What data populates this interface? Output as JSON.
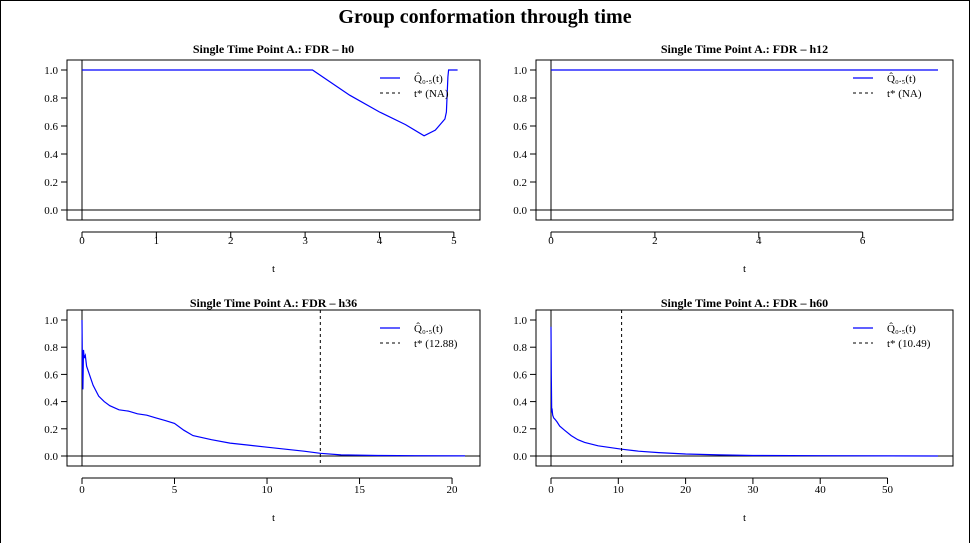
{
  "title": "Group conformation through time",
  "colors": {
    "series": "#0000ff",
    "threshold": "#000000",
    "axis": "#000000"
  },
  "chart_data": [
    {
      "type": "line",
      "title": "Single Time Point A.: FDR – h0",
      "xlabel": "t",
      "xlim": [
        0,
        5.15
      ],
      "ylim": [
        0,
        1.0
      ],
      "xticks": [
        0,
        1,
        2,
        3,
        4,
        5
      ],
      "yticks": [
        0.0,
        0.2,
        0.4,
        0.6,
        0.8,
        1.0
      ],
      "ytick_labels": [
        "0.0",
        "0.2",
        "0.4",
        "0.6",
        "0.8",
        "1.0"
      ],
      "series": [
        {
          "label": "Q̂₀.₅(t)",
          "x": [
            0,
            3.1,
            3.6,
            4.0,
            4.35,
            4.6,
            4.75,
            4.88,
            4.9,
            4.92,
            4.93,
            5.05
          ],
          "y": [
            1.0,
            1.0,
            0.82,
            0.7,
            0.61,
            0.53,
            0.57,
            0.65,
            0.7,
            0.95,
            1.0,
            1.0
          ]
        }
      ],
      "threshold": {
        "label": "t* (NA)",
        "value": null
      },
      "legend": "top-right"
    },
    {
      "type": "line",
      "title": "Single Time Point A.: FDR – h12",
      "xlabel": "t",
      "xlim": [
        0,
        7.45
      ],
      "ylim": [
        0,
        1.0
      ],
      "xticks": [
        0,
        2,
        4,
        6
      ],
      "yticks": [
        0.0,
        0.2,
        0.4,
        0.6,
        0.8,
        1.0
      ],
      "ytick_labels": [
        "0.0",
        "0.2",
        "0.4",
        "0.6",
        "0.8",
        "1.0"
      ],
      "series": [
        {
          "label": "Q̂₀.₅(t)",
          "x": [
            0,
            7.45
          ],
          "y": [
            1.0,
            1.0
          ]
        }
      ],
      "threshold": {
        "label": "t* (NA)",
        "value": null
      },
      "legend": "top-right"
    },
    {
      "type": "line",
      "title": "Single Time Point A.: FDR – h36",
      "xlabel": "t",
      "xlim": [
        0,
        20.7
      ],
      "ylim": [
        0,
        1.0
      ],
      "xticks": [
        0,
        5,
        10,
        15,
        20
      ],
      "yticks": [
        0.0,
        0.2,
        0.4,
        0.6,
        0.8,
        1.0
      ],
      "ytick_labels": [
        "0.0",
        "0.2",
        "0.4",
        "0.6",
        "0.8",
        "1.0"
      ],
      "series": [
        {
          "label": "Q̂₀.₅(t)",
          "x": [
            0,
            0.02,
            0.05,
            0.08,
            0.12,
            0.18,
            0.25,
            0.4,
            0.6,
            0.9,
            1.2,
            1.5,
            2.0,
            2.5,
            3.0,
            3.5,
            4.0,
            4.5,
            5.0,
            5.5,
            6.0,
            7.0,
            8.0,
            9.0,
            10.0,
            11.0,
            12.0,
            12.88,
            14.0,
            16.0,
            18.0,
            20.7
          ],
          "y": [
            1.0,
            0.65,
            0.49,
            0.78,
            0.72,
            0.74,
            0.66,
            0.6,
            0.52,
            0.44,
            0.4,
            0.37,
            0.34,
            0.33,
            0.31,
            0.3,
            0.28,
            0.26,
            0.24,
            0.19,
            0.15,
            0.12,
            0.095,
            0.08,
            0.065,
            0.05,
            0.035,
            0.02,
            0.008,
            0.004,
            0.002,
            0.001
          ]
        }
      ],
      "threshold": {
        "label": "t* (12.88)",
        "value": 12.88
      },
      "legend": "top-right"
    },
    {
      "type": "line",
      "title": "Single Time Point A.: FDR – h60",
      "xlabel": "t",
      "xlim": [
        0,
        57.5
      ],
      "ylim": [
        0,
        1.0
      ],
      "xticks": [
        0,
        10,
        20,
        30,
        40,
        50
      ],
      "yticks": [
        0.0,
        0.2,
        0.4,
        0.6,
        0.8,
        1.0
      ],
      "ytick_labels": [
        "0.0",
        "0.2",
        "0.4",
        "0.6",
        "0.8",
        "1.0"
      ],
      "series": [
        {
          "label": "Q̂₀.₅(t)",
          "x": [
            0,
            0.05,
            0.1,
            0.15,
            0.25,
            0.4,
            0.6,
            0.9,
            1.3,
            2.0,
            3.0,
            4.0,
            5.0,
            7.0,
            10.49,
            13.0,
            16.0,
            20.0,
            25.0,
            30.0,
            40.0,
            50.0,
            57.5
          ],
          "y": [
            0.95,
            0.6,
            0.32,
            0.35,
            0.3,
            0.28,
            0.27,
            0.25,
            0.22,
            0.19,
            0.15,
            0.12,
            0.1,
            0.075,
            0.05,
            0.035,
            0.025,
            0.015,
            0.008,
            0.004,
            0.002,
            0.001,
            0.0
          ]
        }
      ],
      "threshold": {
        "label": "t* (10.49)",
        "value": 10.49
      },
      "legend": "top-right"
    }
  ]
}
